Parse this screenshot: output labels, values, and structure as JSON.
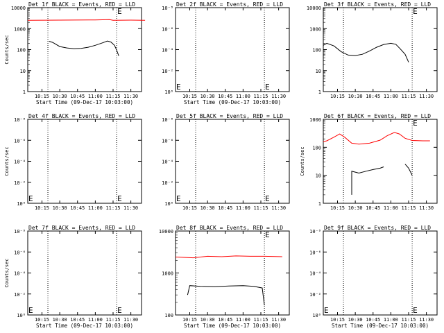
{
  "chart_data": [
    {
      "type": "line",
      "title": "Det 1f BLACK = Events, RED = LLD",
      "xlabel": "Start Time (09-Dec-17 10:03:00)",
      "ylabel": "Counts/sec",
      "x_ticks": [
        "10:15",
        "10:30",
        "10:45",
        "11:00",
        "11:15",
        "11:30"
      ],
      "y_ticks": [
        "1",
        "10",
        "100",
        "1000",
        "10000"
      ],
      "ylim": [
        1,
        10000
      ],
      "log_y": true,
      "vlines": [
        "10:20",
        "11:18"
      ],
      "markers": [
        {
          "text": "E",
          "x": "11:18",
          "y": 10000
        }
      ],
      "series": [
        {
          "color": "#ff0000",
          "values": [
            [
              10.05,
              2500
            ],
            [
              10.5,
              2550
            ],
            [
              11.0,
              2600
            ],
            [
              11.2,
              2700
            ],
            [
              11.25,
              2500
            ],
            [
              11.5,
              2550
            ],
            [
              11.7,
              2500
            ]
          ]
        },
        {
          "color": "#000000",
          "values": [
            [
              10.35,
              250
            ],
            [
              10.4,
              220
            ],
            [
              10.5,
              140
            ],
            [
              10.6,
              120
            ],
            [
              10.7,
              110
            ],
            [
              10.8,
              115
            ],
            [
              10.9,
              130
            ],
            [
              11.0,
              160
            ],
            [
              11.1,
              210
            ],
            [
              11.17,
              255
            ],
            [
              11.22,
              230
            ],
            [
              11.27,
              160
            ],
            [
              11.3,
              95
            ],
            [
              11.33,
              50
            ]
          ]
        }
      ]
    },
    {
      "type": "line",
      "title": "Det 2f BLACK = Events, RED = LLD",
      "xlabel": "Start Time (09-Dec-17 10:03:00)",
      "ylabel": "",
      "x_ticks": [
        "10:15",
        "10:30",
        "10:45",
        "11:00",
        "11:15",
        "11:30"
      ],
      "y_ticks": [
        "10⁰",
        "10⁻²",
        "10⁻⁴",
        "10⁻⁶",
        "10⁻⁸"
      ],
      "log_y": false,
      "vlines": [
        "10:20",
        "11:18"
      ],
      "markers": [
        {
          "text": "E",
          "x": "10:03",
          "y": 0.1
        },
        {
          "text": "E",
          "x": "11:18",
          "y": 0.1
        }
      ],
      "series": []
    },
    {
      "type": "line",
      "title": "Det 3f BLACK = Events, RED = LLD",
      "xlabel": "",
      "ylabel": "",
      "x_ticks": [
        "10:15",
        "10:30",
        "10:45",
        "11:00",
        "11:15",
        "11:30"
      ],
      "y_ticks": [
        "1",
        "10",
        "100",
        "1000",
        "10000"
      ],
      "ylim": [
        1,
        10000
      ],
      "log_y": true,
      "vlines": [
        "10:20",
        "11:18"
      ],
      "markers": [
        {
          "text": "E",
          "x": "11:18",
          "y": 10000
        }
      ],
      "series": [
        {
          "color": "#000000",
          "values": [
            [
              10.05,
              160
            ],
            [
              10.1,
              200
            ],
            [
              10.2,
              150
            ],
            [
              10.3,
              80
            ],
            [
              10.4,
              55
            ],
            [
              10.5,
              52
            ],
            [
              10.6,
              60
            ],
            [
              10.7,
              85
            ],
            [
              10.8,
              130
            ],
            [
              10.9,
              175
            ],
            [
              11.0,
              200
            ],
            [
              11.07,
              180
            ],
            [
              11.13,
              110
            ],
            [
              11.2,
              60
            ],
            [
              11.25,
              25
            ]
          ]
        }
      ]
    },
    {
      "type": "line",
      "title": "Det 4f BLACK = Events, RED = LLD",
      "xlabel": "",
      "ylabel": "Counts/sec",
      "x_ticks": [
        "10:15",
        "10:30",
        "10:45",
        "11:00",
        "11:15",
        "11:30"
      ],
      "y_ticks": [
        "10⁰",
        "10⁻²",
        "10⁻⁴",
        "10⁻⁶",
        "10⁻⁸"
      ],
      "log_y": false,
      "vlines": [
        "10:20",
        "11:18"
      ],
      "markers": [
        {
          "text": "E",
          "x": "10:03",
          "y": 0.1
        },
        {
          "text": "E",
          "x": "11:18",
          "y": 0.1
        }
      ],
      "series": []
    },
    {
      "type": "line",
      "title": "Det 5f BLACK = Events, RED = LLD",
      "xlabel": "",
      "ylabel": "",
      "x_ticks": [
        "10:15",
        "10:30",
        "10:45",
        "11:00",
        "11:15",
        "11:30"
      ],
      "y_ticks": [
        "10⁰",
        "10⁻²",
        "10⁻⁴",
        "10⁻⁶",
        "10⁻⁸"
      ],
      "log_y": false,
      "vlines": [
        "10:20",
        "11:18"
      ],
      "markers": [
        {
          "text": "E",
          "x": "10:03",
          "y": 0.1
        },
        {
          "text": "E",
          "x": "11:18",
          "y": 0.1
        }
      ],
      "series": []
    },
    {
      "type": "line",
      "title": "Det 6f BLACK = Events, RED = LLD",
      "xlabel": "",
      "ylabel": "Counts/sec",
      "x_ticks": [
        "10:15",
        "10:30",
        "10:45",
        "11:00",
        "11:15",
        "11:30"
      ],
      "y_ticks": [
        "1",
        "10",
        "100",
        "1000"
      ],
      "ylim": [
        1,
        1000
      ],
      "log_y": true,
      "vlines": [
        "10:20",
        "11:18"
      ],
      "markers": [
        {
          "text": "E",
          "x": "11:18",
          "y": 1000
        }
      ],
      "series": [
        {
          "color": "#ff0000",
          "values": [
            [
              10.05,
              160
            ],
            [
              10.1,
              170
            ],
            [
              10.2,
              230
            ],
            [
              10.28,
              300
            ],
            [
              10.35,
              230
            ],
            [
              10.45,
              140
            ],
            [
              10.55,
              130
            ],
            [
              10.7,
              140
            ],
            [
              10.85,
              180
            ],
            [
              10.95,
              260
            ],
            [
              11.05,
              340
            ],
            [
              11.12,
              300
            ],
            [
              11.2,
              210
            ],
            [
              11.3,
              175
            ],
            [
              11.45,
              170
            ],
            [
              11.55,
              170
            ]
          ]
        },
        {
          "color": "#000000",
          "values": [
            [
              10.45,
              2
            ],
            [
              10.45,
              14
            ],
            [
              10.55,
              12
            ],
            [
              10.65,
              14
            ],
            [
              10.75,
              16
            ],
            [
              10.85,
              18
            ],
            [
              10.9,
              20
            ],
            [
              10.9,
              null
            ],
            [
              11.2,
              25
            ],
            [
              11.25,
              18
            ],
            [
              11.3,
              10
            ]
          ]
        }
      ]
    },
    {
      "type": "line",
      "title": "Det 7f BLACK = Events, RED = LLD",
      "xlabel": "Start Time (09-Dec-17 10:03:00)",
      "ylabel": "Counts/sec",
      "x_ticks": [
        "10:15",
        "10:30",
        "10:45",
        "11:00",
        "11:15",
        "11:30"
      ],
      "y_ticks": [
        "10⁰",
        "10⁻²",
        "10⁻⁴",
        "10⁻⁶",
        "10⁻⁸"
      ],
      "log_y": false,
      "vlines": [
        "10:20",
        "11:18"
      ],
      "markers": [
        {
          "text": "E",
          "x": "10:03",
          "y": 0.1
        },
        {
          "text": "E",
          "x": "11:18",
          "y": 0.1
        }
      ],
      "series": []
    },
    {
      "type": "line",
      "title": "Det 8f BLACK = Events, RED = LLD",
      "xlabel": "Start Time (09-Dec-17 10:03:00)",
      "ylabel": "",
      "x_ticks": [
        "10:15",
        "10:30",
        "10:45",
        "11:00",
        "11:15",
        "11:30"
      ],
      "y_ticks": [
        "100",
        "1000",
        "10000"
      ],
      "ylim": [
        100,
        10000
      ],
      "log_y": true,
      "vlines": [
        "10:20",
        "11:18"
      ],
      "markers": [
        {
          "text": "E",
          "x": "11:18",
          "y": 10000
        }
      ],
      "series": [
        {
          "color": "#ff0000",
          "values": [
            [
              10.05,
              2400
            ],
            [
              10.3,
              2300
            ],
            [
              10.5,
              2500
            ],
            [
              10.7,
              2450
            ],
            [
              10.9,
              2550
            ],
            [
              11.1,
              2500
            ],
            [
              11.3,
              2500
            ],
            [
              11.55,
              2450
            ]
          ]
        },
        {
          "color": "#000000",
          "values": [
            [
              10.22,
              300
            ],
            [
              10.25,
              500
            ],
            [
              10.4,
              480
            ],
            [
              10.6,
              470
            ],
            [
              10.8,
              490
            ],
            [
              11.0,
              500
            ],
            [
              11.15,
              480
            ],
            [
              11.27,
              440
            ],
            [
              11.3,
              170
            ]
          ]
        }
      ]
    },
    {
      "type": "line",
      "title": "Det 9f BLACK = Events, RED = LLD",
      "xlabel": "Start Time (09-Dec-17 10:03:00)",
      "ylabel": "",
      "x_ticks": [
        "10:15",
        "10:30",
        "10:45",
        "11:00",
        "11:15",
        "11:30"
      ],
      "y_ticks": [
        "10⁰",
        "10⁻²",
        "10⁻⁴",
        "10⁻⁶",
        "10⁻⁸"
      ],
      "log_y": false,
      "vlines": [
        "10:20",
        "11:18"
      ],
      "markers": [
        {
          "text": "E",
          "x": "10:03",
          "y": 0.1
        },
        {
          "text": "E",
          "x": "11:18",
          "y": 0.1
        }
      ],
      "series": []
    }
  ]
}
